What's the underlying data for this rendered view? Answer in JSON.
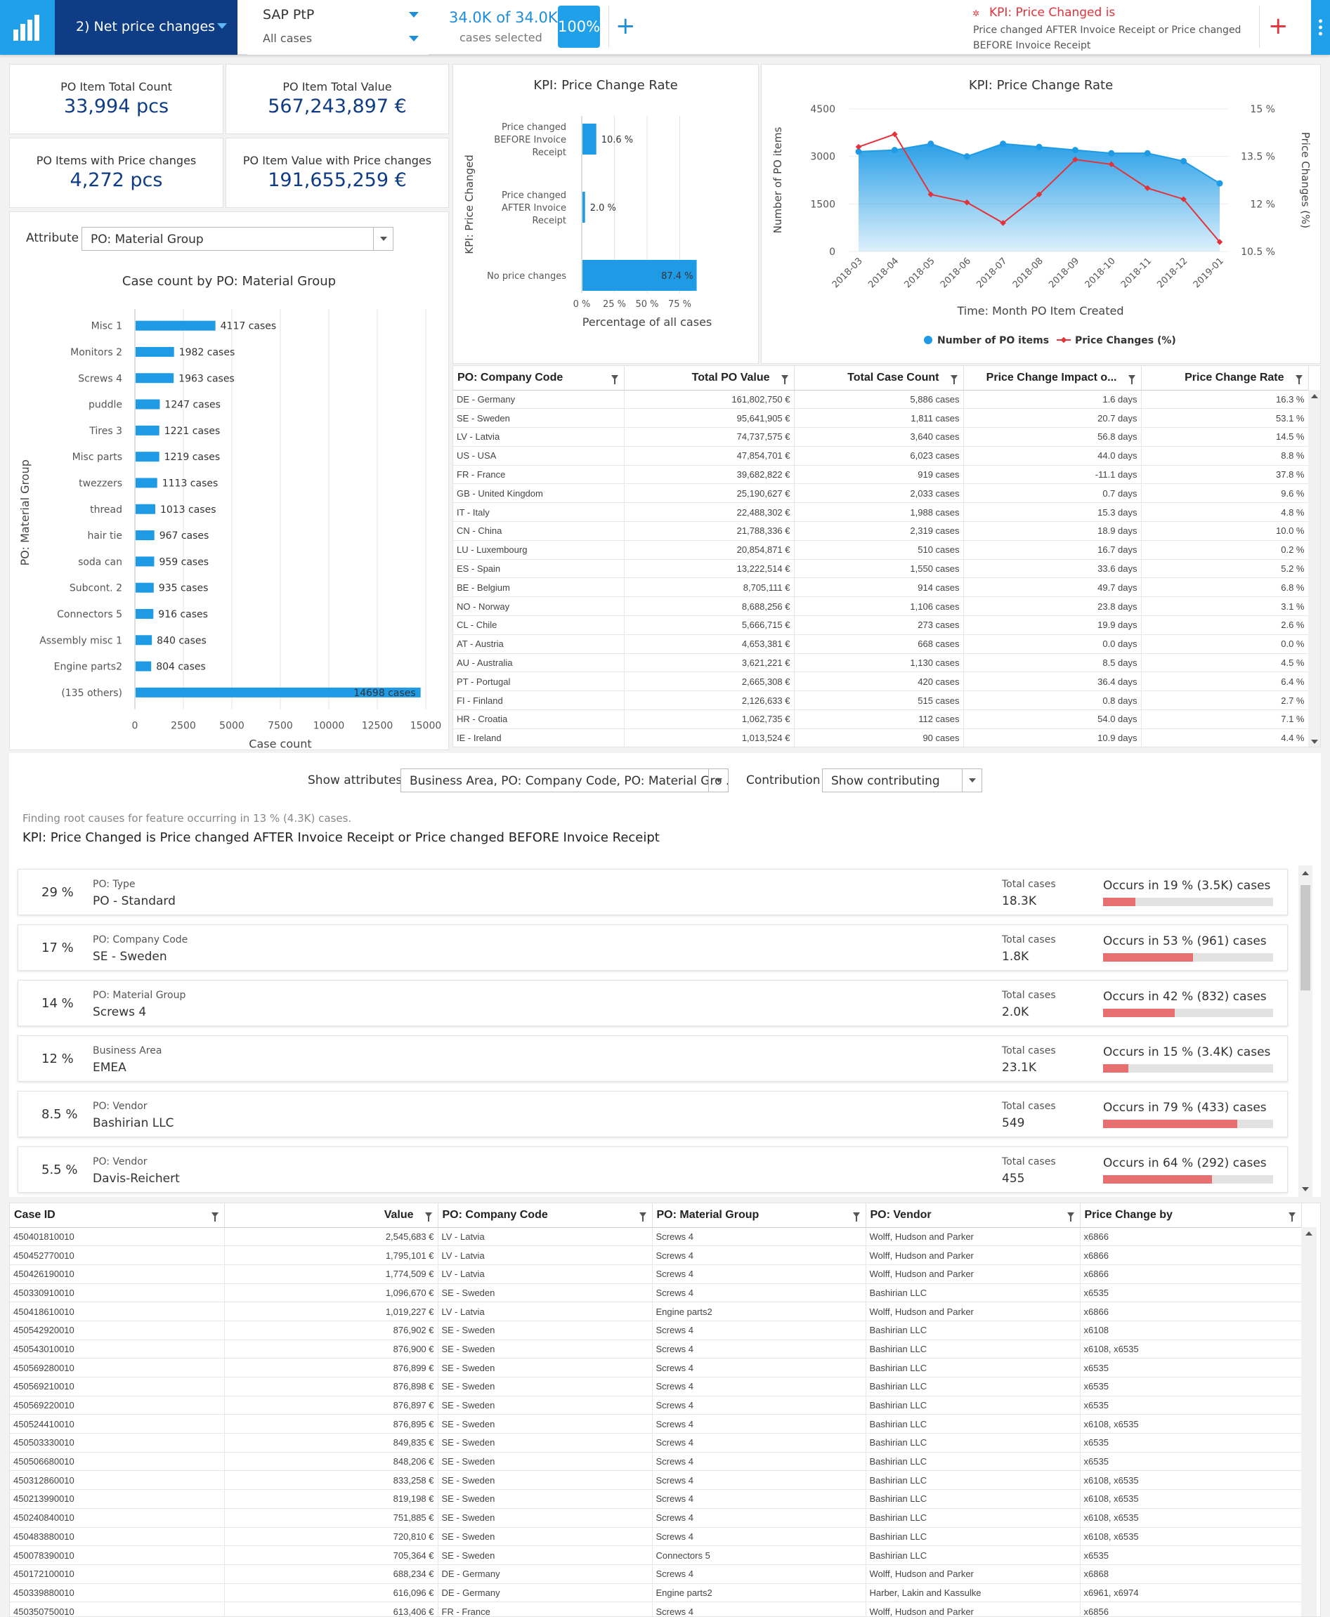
{
  "topbar": {
    "analysis_title": "2) Net price changes",
    "data_source": "SAP PtP",
    "case_filter": "All cases",
    "cases_selected": "34.0K of 34.0K",
    "cases_selected_label": "cases selected",
    "percent_selected": "100%",
    "add_label": "+",
    "kpi_filter_title": "KPI: Price Changed is",
    "kpi_filter_desc": "Price changed AFTER Invoice Receipt or Price changed BEFORE Invoice Receipt",
    "kpi_add_label": "+",
    "colors": {
      "logo_bg": "#1fa0e8",
      "nav_bg": "#0f3d85",
      "accent": "#1f8ed8",
      "filter_red": "#e2333a"
    }
  },
  "kpis": {
    "total_count_label": "PO Item Total Count",
    "total_count_value": "33,994 pcs",
    "total_value_label": "PO Item Total Value",
    "total_value_value": "567,243,897 €",
    "changed_count_label": "PO Items with Price changes",
    "changed_count_value": "4,272 pcs",
    "changed_value_label": "PO Item Value with Price changes",
    "changed_value_value": "191,655,259 €"
  },
  "attribute_panel": {
    "label": "Attribute",
    "selected": "PO: Material Group",
    "title": "Case count by PO: Material Group"
  },
  "chart_data": [
    {
      "type": "bar",
      "orientation": "horizontal",
      "title": "Case count by PO: Material Group",
      "xlabel": "Case count",
      "ylabel": "PO: Material Group",
      "xlim": [
        0,
        15000
      ],
      "xticks": [
        "0",
        "2500",
        "5000",
        "7500",
        "10000",
        "12500",
        "15000"
      ],
      "categories": [
        "Misc 1",
        "Monitors 2",
        "Screws 4",
        "puddle",
        "Tires 3",
        "Misc parts",
        "twezzers",
        "thread",
        "hair tie",
        "soda can",
        "Subcont. 2",
        "Connectors 5",
        "Assembly misc 1",
        "Engine parts2",
        "(135 others)"
      ],
      "values": [
        4117,
        1982,
        1963,
        1247,
        1221,
        1219,
        1113,
        1013,
        967,
        959,
        935,
        916,
        840,
        804,
        14698
      ],
      "labels": [
        "4117 cases",
        "1982 cases",
        "1963 cases",
        "1247 cases",
        "1221 cases",
        "1219 cases",
        "1113 cases",
        "1013 cases",
        "967 cases",
        "959 cases",
        "935 cases",
        "916 cases",
        "840 cases",
        "804 cases",
        "14698 cases"
      ],
      "color": "#1f9be6"
    },
    {
      "type": "bar",
      "orientation": "horizontal",
      "title": "KPI: Price Change Rate",
      "xlabel": "Percentage of all cases",
      "ylabel": "KPI: Price Changed",
      "xlim": [
        0,
        100
      ],
      "xticks": [
        "0 %",
        "25 %",
        "50 %",
        "75 %"
      ],
      "categories": [
        [
          "Price changed",
          "BEFORE Invoice",
          "Receipt"
        ],
        [
          "Price changed",
          "AFTER Invoice",
          "Receipt"
        ],
        [
          "No price changes"
        ]
      ],
      "values": [
        10.6,
        2.0,
        87.4
      ],
      "labels": [
        "10.6 %",
        "2.0 %",
        "87.4 %"
      ],
      "color": "#1f9be6"
    },
    {
      "type": "line",
      "title": "KPI: Price Change Rate",
      "xlabel": "Time: Month PO Item Created",
      "ylabel": "Number of PO items",
      "y2label": "Price Changes (%)",
      "x": [
        "2018-03",
        "2018-04",
        "2018-05",
        "2018-06",
        "2018-07",
        "2018-08",
        "2018-09",
        "2018-10",
        "2018-11",
        "2018-12",
        "2019-01"
      ],
      "ylim": [
        0,
        4500
      ],
      "yticks": [
        "4500",
        "3000",
        "1500",
        "0"
      ],
      "y2lim": [
        10.5,
        15
      ],
      "y2ticks": [
        "15 %",
        "13.5 %",
        "12 %",
        "10.5 %"
      ],
      "series": [
        {
          "name": "Number of PO items",
          "kind": "area",
          "axis": "left",
          "color": "#1f9be6",
          "values": [
            3150,
            3200,
            3400,
            3000,
            3400,
            3300,
            3200,
            3100,
            3100,
            2850,
            2150
          ]
        },
        {
          "name": "Price Changes (%)",
          "kind": "line",
          "axis": "right",
          "color": "#e2333a",
          "values": [
            13.8,
            14.2,
            12.3,
            12.05,
            11.4,
            12.3,
            13.4,
            13.25,
            12.5,
            12.15,
            10.8
          ]
        }
      ],
      "legend": "bottom"
    }
  ],
  "company_table": {
    "columns": [
      "PO: Company Code",
      "Total PO Value",
      "Total Case Count",
      "Price Change Impact o...",
      "Price Change Rate"
    ],
    "rows": [
      [
        "DE - Germany",
        "161,802,750 €",
        "5,886 cases",
        "1.6 days",
        "16.3 %"
      ],
      [
        "SE - Sweden",
        "95,641,905 €",
        "1,811 cases",
        "20.7 days",
        "53.1 %"
      ],
      [
        "LV - Latvia",
        "74,737,575 €",
        "3,640 cases",
        "56.8 days",
        "14.5 %"
      ],
      [
        "US - USA",
        "47,854,701 €",
        "6,023 cases",
        "44.0 days",
        "8.8 %"
      ],
      [
        "FR - France",
        "39,682,822 €",
        "919 cases",
        "-11.1 days",
        "37.8 %"
      ],
      [
        "GB - United Kingdom",
        "25,190,627 €",
        "2,033 cases",
        "0.7 days",
        "9.6 %"
      ],
      [
        "IT - Italy",
        "22,488,302 €",
        "1,988 cases",
        "15.3 days",
        "4.8 %"
      ],
      [
        "CN - China",
        "21,788,336 €",
        "2,319 cases",
        "18.9 days",
        "10.0 %"
      ],
      [
        "LU - Luxembourg",
        "20,854,871 €",
        "510 cases",
        "16.7 days",
        "0.2 %"
      ],
      [
        "ES - Spain",
        "13,222,514 €",
        "1,550 cases",
        "33.6 days",
        "5.2 %"
      ],
      [
        "BE - Belgium",
        "8,705,111 €",
        "914 cases",
        "49.7 days",
        "6.8 %"
      ],
      [
        "NO - Norway",
        "8,688,256 €",
        "1,106 cases",
        "23.8 days",
        "3.1 %"
      ],
      [
        "CL - Chile",
        "5,666,715 €",
        "273 cases",
        "19.9 days",
        "2.6 %"
      ],
      [
        "AT - Austria",
        "4,653,381 €",
        "668 cases",
        "0.0 days",
        "0.0 %"
      ],
      [
        "AU - Australia",
        "3,621,221 €",
        "1,130 cases",
        "8.5 days",
        "4.5 %"
      ],
      [
        "PT - Portugal",
        "2,665,308 €",
        "420 cases",
        "36.4 days",
        "6.4 %"
      ],
      [
        "FI - Finland",
        "2,126,633 €",
        "515 cases",
        "0.8 days",
        "2.7 %"
      ],
      [
        "HR - Croatia",
        "1,062,735 €",
        "112 cases",
        "54.0 days",
        "7.1 %"
      ],
      [
        "IE - Ireland",
        "1,013,524 €",
        "90 cases",
        "10.9 days",
        "4.4 %"
      ]
    ]
  },
  "root_cause": {
    "show_attributes_label": "Show attributes",
    "show_attributes_value": "Business Area, PO: Company Code, PO: Material Gro ...",
    "contribution_label": "Contribution",
    "contribution_value": "Show contributing",
    "finding_text": "Finding root causes for feature occurring in 13 % (4.3K) cases.",
    "kpi_text": "KPI: Price Changed is Price changed AFTER Invoice Receipt or Price changed BEFORE Invoice Receipt",
    "total_cases_label": "Total cases",
    "items": [
      {
        "pct": "29 %",
        "attr": "PO: Type",
        "value": "PO - Standard",
        "total": "18.3K",
        "occurs": "Occurs in 19 % (3.5K) cases",
        "occ_pct": 19
      },
      {
        "pct": "17 %",
        "attr": "PO: Company Code",
        "value": "SE - Sweden",
        "total": "1.8K",
        "occurs": "Occurs in 53 % (961) cases",
        "occ_pct": 53
      },
      {
        "pct": "14 %",
        "attr": "PO: Material Group",
        "value": "Screws 4",
        "total": "2.0K",
        "occurs": "Occurs in 42 % (832) cases",
        "occ_pct": 42
      },
      {
        "pct": "12 %",
        "attr": "Business Area",
        "value": "EMEA",
        "total": "23.1K",
        "occurs": "Occurs in 15 % (3.4K) cases",
        "occ_pct": 15
      },
      {
        "pct": "8.5 %",
        "attr": "PO: Vendor",
        "value": "Bashirian LLC",
        "total": "549",
        "occurs": "Occurs in 79 % (433) cases",
        "occ_pct": 79
      },
      {
        "pct": "5.5 %",
        "attr": "PO: Vendor",
        "value": "Davis-Reichert",
        "total": "455",
        "occurs": "Occurs in 64 % (292) cases",
        "occ_pct": 64
      }
    ]
  },
  "case_table": {
    "columns": [
      "Case ID",
      "Value",
      "PO: Company Code",
      "PO: Material Group",
      "PO: Vendor",
      "Price Change by"
    ],
    "rows": [
      [
        "450401810010",
        "2,545,683 €",
        "LV - Latvia",
        "Screws 4",
        "Wolff, Hudson and Parker",
        "x6866"
      ],
      [
        "450452770010",
        "1,795,101 €",
        "LV - Latvia",
        "Screws 4",
        "Wolff, Hudson and Parker",
        "x6866"
      ],
      [
        "450426190010",
        "1,774,509 €",
        "LV - Latvia",
        "Screws 4",
        "Wolff, Hudson and Parker",
        "x6866"
      ],
      [
        "450330910010",
        "1,096,670 €",
        "SE - Sweden",
        "Screws 4",
        "Bashirian LLC",
        "x6535"
      ],
      [
        "450418610010",
        "1,019,227 €",
        "LV - Latvia",
        "Engine parts2",
        "Wolff, Hudson and Parker",
        "x6866"
      ],
      [
        "450542920010",
        "876,902 €",
        "SE - Sweden",
        "Screws 4",
        "Bashirian LLC",
        "x6108"
      ],
      [
        "450543010010",
        "876,900 €",
        "SE - Sweden",
        "Screws 4",
        "Bashirian LLC",
        "x6108, x6535"
      ],
      [
        "450569280010",
        "876,899 €",
        "SE - Sweden",
        "Screws 4",
        "Bashirian LLC",
        "x6535"
      ],
      [
        "450569210010",
        "876,898 €",
        "SE - Sweden",
        "Screws 4",
        "Bashirian LLC",
        "x6535"
      ],
      [
        "450569220010",
        "876,897 €",
        "SE - Sweden",
        "Screws 4",
        "Bashirian LLC",
        "x6535"
      ],
      [
        "450524410010",
        "876,895 €",
        "SE - Sweden",
        "Screws 4",
        "Bashirian LLC",
        "x6108, x6535"
      ],
      [
        "450503330010",
        "849,835 €",
        "SE - Sweden",
        "Screws 4",
        "Bashirian LLC",
        "x6535"
      ],
      [
        "450506680010",
        "848,206 €",
        "SE - Sweden",
        "Screws 4",
        "Bashirian LLC",
        "x6535"
      ],
      [
        "450312860010",
        "833,258 €",
        "SE - Sweden",
        "Screws 4",
        "Bashirian LLC",
        "x6108, x6535"
      ],
      [
        "450213990010",
        "819,198 €",
        "SE - Sweden",
        "Screws 4",
        "Bashirian LLC",
        "x6108, x6535"
      ],
      [
        "450240840010",
        "751,885 €",
        "SE - Sweden",
        "Screws 4",
        "Bashirian LLC",
        "x6108, x6535"
      ],
      [
        "450483880010",
        "720,810 €",
        "SE - Sweden",
        "Screws 4",
        "Bashirian LLC",
        "x6108, x6535"
      ],
      [
        "450078390010",
        "705,364 €",
        "SE - Sweden",
        "Connectors 5",
        "Bashirian LLC",
        "x6535"
      ],
      [
        "450172100010",
        "688,234 €",
        "DE - Germany",
        "Screws 4",
        "Wolff, Hudson and Parker",
        "x6868"
      ],
      [
        "450339880010",
        "616,096 €",
        "DE - Germany",
        "Engine parts2",
        "Harber, Lakin and Kassulke",
        "x6961, x6974"
      ],
      [
        "450350750010",
        "613,406 €",
        "FR - France",
        "Screws 4",
        "Wolff, Hudson and Parker",
        "x6856"
      ]
    ]
  }
}
